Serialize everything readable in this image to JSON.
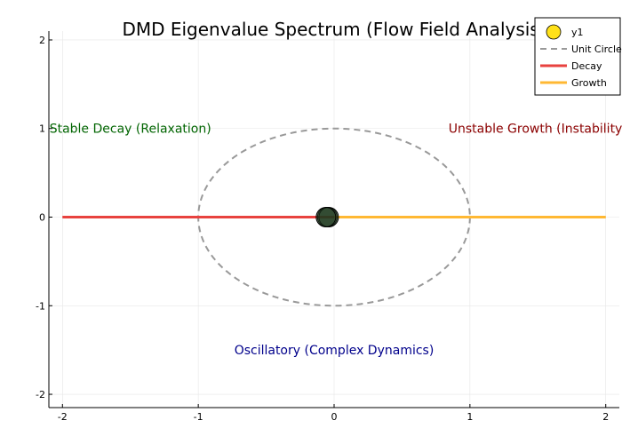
{
  "chart_data": {
    "type": "scatter",
    "title": "DMD Eigenvalue Spectrum (Flow Field Analysis)",
    "xlabel": "",
    "ylabel": "",
    "xlim": [
      -2.1,
      2.1
    ],
    "ylim": [
      -2.15,
      2.1
    ],
    "xticks": [
      -2,
      -1,
      0,
      1,
      2
    ],
    "yticks": [
      -2,
      -1,
      0,
      1,
      2
    ],
    "xtick_labels": [
      "-2",
      "-1",
      "0",
      "1",
      "2"
    ],
    "ytick_labels": [
      "-2",
      "-1",
      "0",
      "1",
      "2"
    ],
    "grid": true,
    "legend_position": "top-right",
    "series": [
      {
        "name": "y1",
        "kind": "scatter",
        "color": "#FFE119",
        "points": [
          {
            "x": -0.05,
            "y": 0
          },
          {
            "x": -0.04,
            "y": 0
          },
          {
            "x": -0.06,
            "y": 0
          }
        ]
      },
      {
        "name": "Unit Circle",
        "kind": "line",
        "style": "dashed",
        "color": "#999999",
        "radius": 1,
        "center": [
          0,
          0
        ]
      },
      {
        "name": "Decay",
        "kind": "line",
        "color": "#E8423F",
        "x": [
          -2,
          0
        ],
        "y": [
          0,
          0
        ]
      },
      {
        "name": "Growth",
        "kind": "line",
        "color": "#FFB833",
        "x": [
          0,
          2
        ],
        "y": [
          0,
          0
        ]
      }
    ],
    "annotations": [
      {
        "text": "Stable Decay (Relaxation)",
        "x": -1.5,
        "y": 1,
        "color": "#006400"
      },
      {
        "text": "Unstable Growth (Instability)",
        "x": 1.5,
        "y": 1,
        "color": "#8B0000"
      },
      {
        "text": "Oscillatory (Complex Dynamics)",
        "x": 0,
        "y": -1.5,
        "color": "#00008B"
      }
    ]
  }
}
